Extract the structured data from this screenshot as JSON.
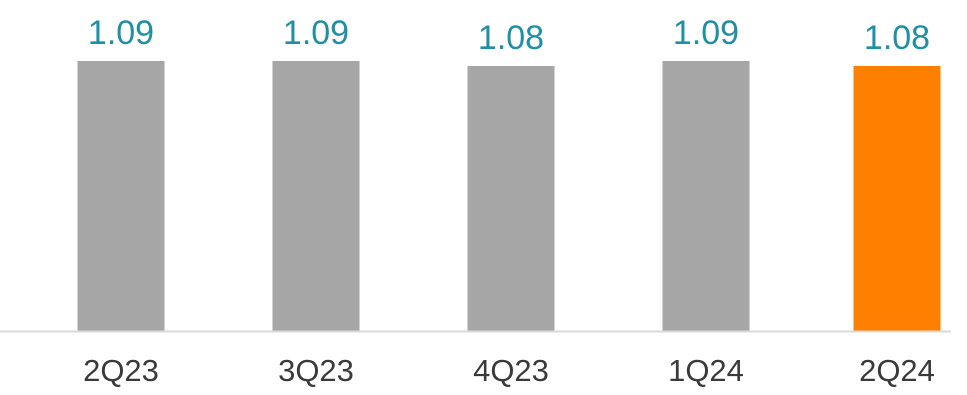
{
  "chart_data": {
    "type": "bar",
    "categories": [
      "2Q23",
      "3Q23",
      "4Q23",
      "1Q24",
      "2Q24"
    ],
    "values": [
      1.09,
      1.09,
      1.08,
      1.09,
      1.08
    ],
    "data_labels": [
      "1.09",
      "1.09",
      "1.08",
      "1.09",
      "1.08"
    ],
    "highlight_index": 4,
    "title": "",
    "xlabel": "",
    "ylabel": "",
    "grid": false,
    "legend": "none"
  },
  "colors": {
    "bar": "#a6a6a6",
    "highlight_bar": "#ff8000",
    "data_label": "#1f8fa6",
    "tick_label": "#3a3a3a",
    "axis_line": "#d9d9d9"
  }
}
